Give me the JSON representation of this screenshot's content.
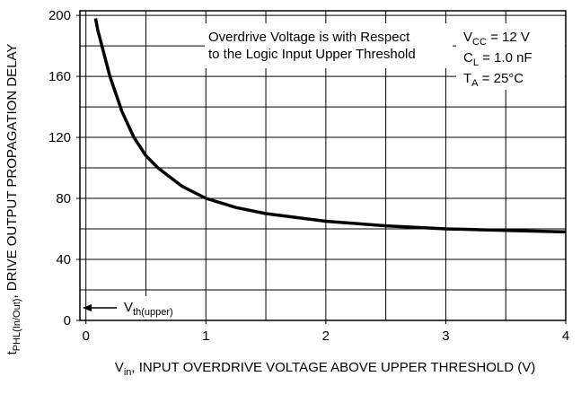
{
  "chart_data": {
    "type": "line",
    "x_label": {
      "base": "V",
      "sub": "in",
      "rest": ", INPUT OVERDRIVE VOLTAGE ABOVE UPPER THRESHOLD (V)"
    },
    "y_label": {
      "base": "t",
      "sub": "PHL(In/Out)",
      "rest": ", DRIVE OUTPUT PROPAGATION DELAY"
    },
    "xlim": [
      -0.05,
      4
    ],
    "ylim": [
      0,
      203
    ],
    "xticks": [
      0,
      1,
      2,
      3,
      4
    ],
    "yticks": [
      0,
      40,
      80,
      120,
      160,
      200
    ],
    "xgrid": [
      0,
      0.5,
      1,
      1.5,
      2,
      2.5,
      3,
      3.5,
      4
    ],
    "ygrid": [
      0,
      20,
      40,
      60,
      80,
      100,
      120,
      140,
      160,
      180,
      200
    ],
    "grid": true,
    "series": [
      {
        "color": "#000000",
        "x": [
          0.08,
          0.1,
          0.2,
          0.3,
          0.4,
          0.5,
          0.6,
          0.8,
          1,
          1.25,
          1.5,
          2,
          2.5,
          3,
          3.5,
          4
        ],
        "values": [
          198,
          190,
          160,
          137,
          120,
          108,
          100,
          88,
          80,
          74,
          70,
          65,
          62,
          60,
          59,
          58
        ]
      }
    ],
    "note_lines": [
      "Overdrive Voltage is with Respect",
      "to the Logic Input Upper Threshold"
    ],
    "conditions": [
      {
        "base": "V",
        "sub": "CC",
        "rest": " = 12 V"
      },
      {
        "base": "C",
        "sub": "L",
        "rest": " = 1.0 nF"
      },
      {
        "base": "T",
        "sub": "A",
        "rest": " = 25°C"
      }
    ],
    "threshold_label": {
      "base": "V",
      "sub": "th(upper)"
    }
  }
}
